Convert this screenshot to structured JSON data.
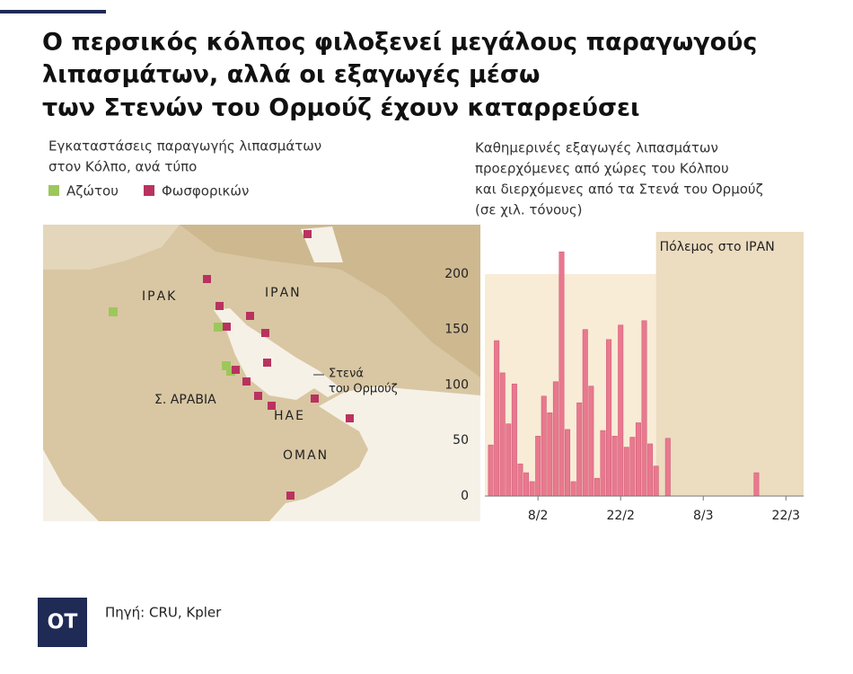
{
  "header": {
    "title": [
      "Ο περσικός κόλπος φιλοξενεί μεγάλους παραγωγούς",
      "λιπασμάτων, αλλά οι εξαγωγές μέσω",
      "των Στενών του Ορμούζ έχουν καταρρεύσει"
    ]
  },
  "map": {
    "title": [
      "Εγκαταστάσεις παραγωγής λιπασμάτων",
      "στον Κόλπο, ανά τύπο"
    ],
    "legend": [
      {
        "name": "Αζώτου",
        "color": "#9dc75b"
      },
      {
        "name": "Φωσφορικών",
        "color": "#b8335f"
      }
    ],
    "labels": [
      "ΙΡΑΚ",
      "ΙΡΑΝ",
      "Σ. ΑΡΑΒΙΑ",
      "ΗΑΕ",
      "ΟΜΑΝ",
      "Στενά",
      "του Ορμούζ"
    ]
  },
  "chart_data": {
    "type": "bar",
    "title": [
      "Καθημερινές εξαγωγές λιπασμάτων",
      "προερχόμενες από  χώρες του Κόλπου",
      "και διερχόμενες από τα Στενά του Ορμούζ",
      "(σε χιλ. τόνους)"
    ],
    "x": [
      "31/1",
      "1/2",
      "2/2",
      "3/2",
      "4/2",
      "5/2",
      "6/2",
      "7/2",
      "8/2",
      "9/2",
      "10/2",
      "11/2",
      "12/2",
      "13/2",
      "14/2",
      "15/2",
      "16/2",
      "17/2",
      "18/2",
      "19/2",
      "20/2",
      "21/2",
      "22/2",
      "23/2",
      "24/2",
      "25/2",
      "26/2",
      "27/2",
      "28/2",
      "2/3",
      "17/3"
    ],
    "values": [
      46,
      140,
      111,
      65,
      101,
      29,
      21,
      13,
      54,
      90,
      75,
      103,
      220,
      60,
      13,
      84,
      150,
      99,
      16,
      59,
      141,
      54,
      154,
      44,
      53,
      66,
      158,
      47,
      27,
      52,
      21
    ],
    "color": "#e8798f",
    "xlim": [
      "30/1",
      "25/3"
    ],
    "xticks": [
      "8/2",
      "22/2",
      "8/3",
      "22/3"
    ],
    "ylim": [
      0,
      238
    ],
    "yticks": [
      0,
      50,
      100,
      150,
      200
    ],
    "annotation": {
      "text": "Πόλεμος στο ΙΡΑΝ",
      "start": "28/2"
    }
  },
  "footer": {
    "logo": "ΟΤ",
    "source": "Πηγή: CRU, Kpler"
  }
}
